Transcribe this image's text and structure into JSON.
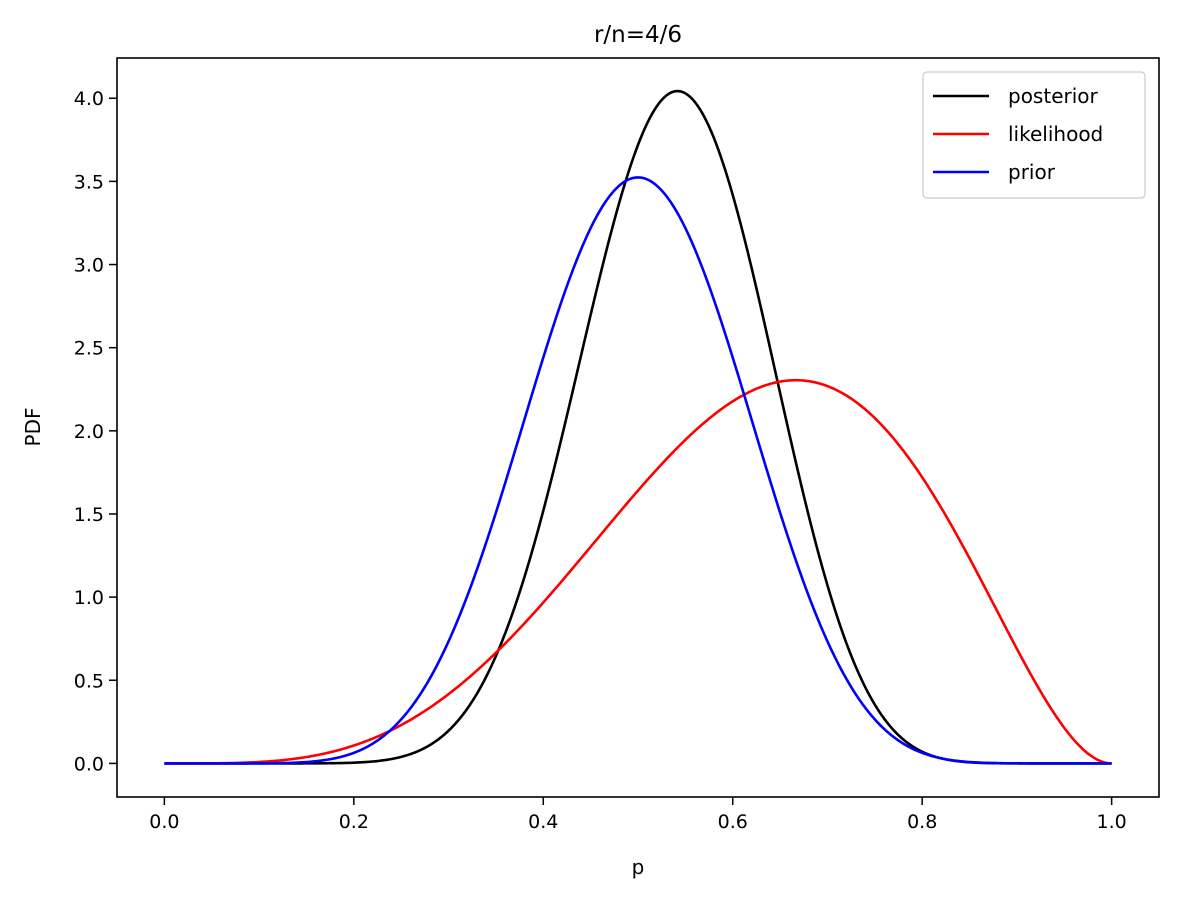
{
  "chart_data": {
    "type": "line",
    "title": "r/n=4/6",
    "xlabel": "p",
    "ylabel": "PDF",
    "xlim": [
      -0.05,
      1.05
    ],
    "ylim": [
      -0.202,
      4.242
    ],
    "grid": false,
    "legend_position": "top-right",
    "x_ticks": [
      "0.0",
      "0.2",
      "0.4",
      "0.6",
      "0.8",
      "1.0"
    ],
    "x_tick_values": [
      0,
      0.2,
      0.4,
      0.6,
      0.8,
      1.0
    ],
    "y_ticks": [
      "0.0",
      "0.5",
      "1.0",
      "1.5",
      "2.0",
      "2.5",
      "3.0",
      "3.5",
      "4.0"
    ],
    "y_tick_values": [
      0,
      0.5,
      1.0,
      1.5,
      2.0,
      2.5,
      3.0,
      3.5,
      4.0
    ],
    "x_range": [
      0,
      1
    ],
    "series": [
      {
        "name": "posterior",
        "color": "#000000",
        "distribution": "beta",
        "a": 14,
        "b": 12,
        "peak": [
          0.542,
          4.04
        ]
      },
      {
        "name": "likelihood",
        "color": "#ff0000",
        "distribution": "beta",
        "a": 5,
        "b": 3,
        "peak": [
          0.667,
          2.3
        ]
      },
      {
        "name": "prior",
        "color": "#0000ff",
        "distribution": "beta",
        "a": 10,
        "b": 10,
        "peak": [
          0.5,
          3.52
        ]
      }
    ]
  }
}
